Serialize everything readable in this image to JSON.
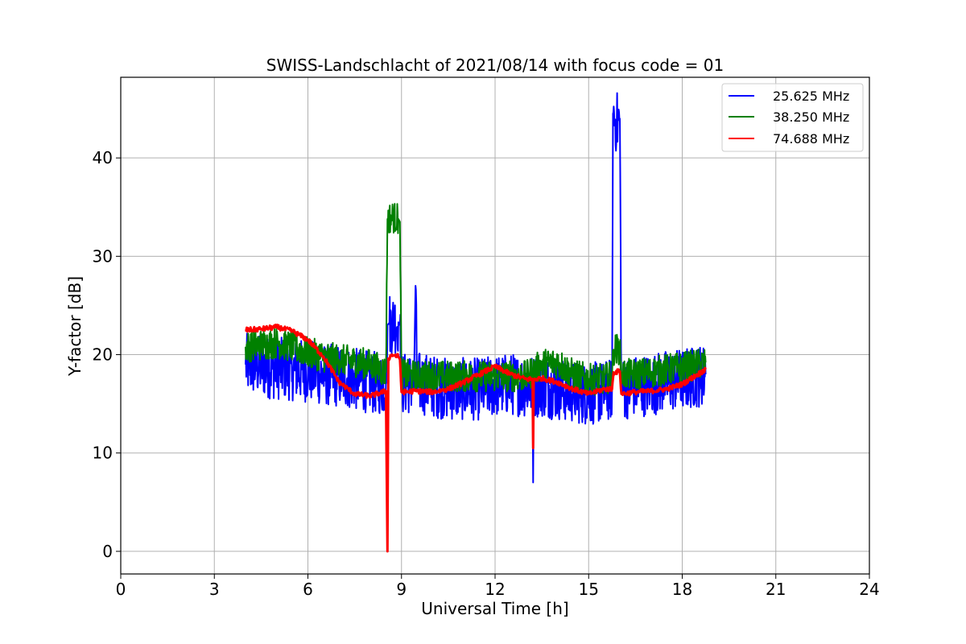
{
  "chart_data": {
    "type": "line",
    "title": "SWISS-Landschlacht of 2021/08/14 with focus code = 01",
    "xlabel": "Universal Time [h]",
    "ylabel": "Y-factor [dB]",
    "xlim": [
      0,
      24
    ],
    "ylim": [
      -2.3,
      48.2
    ],
    "xticks": [
      "0",
      "3",
      "6",
      "9",
      "12",
      "15",
      "18",
      "21",
      "24"
    ],
    "yticks": [
      "0",
      "10",
      "20",
      "30",
      "40"
    ],
    "grid": true,
    "legend_position": "top-right",
    "series": [
      {
        "name": "25.625 MHz",
        "color": "#0000ff",
        "data": [
          [
            4.0,
            19.0
          ],
          [
            4.5,
            18.8
          ],
          [
            5.0,
            18.6
          ],
          [
            5.5,
            18.5
          ],
          [
            6.0,
            18.3
          ],
          [
            6.5,
            18.0
          ],
          [
            7.0,
            17.8
          ],
          [
            7.5,
            17.5
          ],
          [
            8.0,
            17.2
          ],
          [
            8.5,
            17.0
          ],
          [
            8.55,
            23.0
          ],
          [
            8.6,
            23.2
          ],
          [
            8.9,
            23.3
          ],
          [
            8.95,
            23.0
          ],
          [
            9.0,
            17.0
          ],
          [
            9.4,
            17.2
          ],
          [
            9.45,
            27.0
          ],
          [
            9.5,
            17.2
          ],
          [
            10.0,
            16.8
          ],
          [
            10.5,
            16.5
          ],
          [
            11.0,
            16.5
          ],
          [
            11.5,
            16.5
          ],
          [
            12.0,
            16.8
          ],
          [
            12.5,
            17.0
          ],
          [
            13.0,
            16.8
          ],
          [
            13.2,
            16.8
          ],
          [
            13.22,
            7.0
          ],
          [
            13.24,
            16.8
          ],
          [
            13.5,
            16.8
          ],
          [
            14.0,
            16.5
          ],
          [
            14.5,
            16.2
          ],
          [
            15.0,
            16.0
          ],
          [
            15.5,
            16.2
          ],
          [
            15.75,
            16.5
          ],
          [
            15.78,
            44.5
          ],
          [
            15.9,
            43.5
          ],
          [
            16.0,
            44.0
          ],
          [
            16.05,
            16.5
          ],
          [
            16.5,
            16.8
          ],
          [
            17.0,
            17.0
          ],
          [
            17.5,
            17.3
          ],
          [
            18.0,
            17.5
          ],
          [
            18.5,
            17.8
          ],
          [
            18.75,
            18.0
          ]
        ]
      },
      {
        "name": "38.250 MHz",
        "color": "#008000",
        "data": [
          [
            4.0,
            20.8
          ],
          [
            4.5,
            21.0
          ],
          [
            5.0,
            21.2
          ],
          [
            5.5,
            20.8
          ],
          [
            6.0,
            20.2
          ],
          [
            6.5,
            19.8
          ],
          [
            7.0,
            19.5
          ],
          [
            7.5,
            19.3
          ],
          [
            8.0,
            19.0
          ],
          [
            8.5,
            18.2
          ],
          [
            8.55,
            33.8
          ],
          [
            8.7,
            34.0
          ],
          [
            8.9,
            33.8
          ],
          [
            8.95,
            33.5
          ],
          [
            9.0,
            18.0
          ],
          [
            9.5,
            17.8
          ],
          [
            10.0,
            17.8
          ],
          [
            10.5,
            17.8
          ],
          [
            11.0,
            17.8
          ],
          [
            11.5,
            17.8
          ],
          [
            12.0,
            17.8
          ],
          [
            12.5,
            17.8
          ],
          [
            13.0,
            17.8
          ],
          [
            13.5,
            19.0
          ],
          [
            14.0,
            19.2
          ],
          [
            14.5,
            18.0
          ],
          [
            15.0,
            17.5
          ],
          [
            15.5,
            17.5
          ],
          [
            15.75,
            17.8
          ],
          [
            15.8,
            20.5
          ],
          [
            16.0,
            20.6
          ],
          [
            16.05,
            18.0
          ],
          [
            16.5,
            18.0
          ],
          [
            17.0,
            18.2
          ],
          [
            17.5,
            18.5
          ],
          [
            18.0,
            18.7
          ],
          [
            18.5,
            19.0
          ],
          [
            18.75,
            19.2
          ]
        ]
      },
      {
        "name": "74.688 MHz",
        "color": "#ff0000",
        "data": [
          [
            4.0,
            22.5
          ],
          [
            4.5,
            22.6
          ],
          [
            5.0,
            22.8
          ],
          [
            5.5,
            22.4
          ],
          [
            6.0,
            21.5
          ],
          [
            6.5,
            19.8
          ],
          [
            7.0,
            17.2
          ],
          [
            7.5,
            16.0
          ],
          [
            8.0,
            15.8
          ],
          [
            8.5,
            16.3
          ],
          [
            8.55,
            0.0
          ],
          [
            8.58,
            19.6
          ],
          [
            8.7,
            20.0
          ],
          [
            8.9,
            19.8
          ],
          [
            8.95,
            19.5
          ],
          [
            9.0,
            16.2
          ],
          [
            9.5,
            16.3
          ],
          [
            10.0,
            16.2
          ],
          [
            10.5,
            16.5
          ],
          [
            11.0,
            17.2
          ],
          [
            11.5,
            18.0
          ],
          [
            12.0,
            18.8
          ],
          [
            12.5,
            18.0
          ],
          [
            13.0,
            17.5
          ],
          [
            13.2,
            17.5
          ],
          [
            13.22,
            10.5
          ],
          [
            13.24,
            17.5
          ],
          [
            13.5,
            17.6
          ],
          [
            14.0,
            17.2
          ],
          [
            14.5,
            16.5
          ],
          [
            15.0,
            16.0
          ],
          [
            15.5,
            16.5
          ],
          [
            15.75,
            16.5
          ],
          [
            15.8,
            18.2
          ],
          [
            16.0,
            18.3
          ],
          [
            16.05,
            16.0
          ],
          [
            16.5,
            16.2
          ],
          [
            17.0,
            16.3
          ],
          [
            17.5,
            16.5
          ],
          [
            18.0,
            17.0
          ],
          [
            18.5,
            18.0
          ],
          [
            18.75,
            18.5
          ]
        ]
      }
    ]
  }
}
